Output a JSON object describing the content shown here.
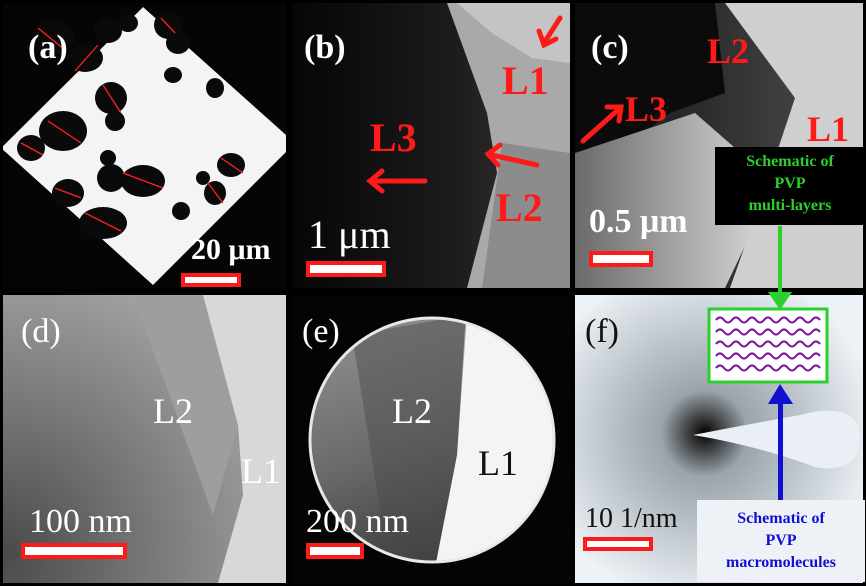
{
  "panels": {
    "a": {
      "tag": "(a)",
      "scale": "20 μm"
    },
    "b": {
      "tag": "(b)",
      "labels": [
        "L1",
        "L2",
        "L3"
      ],
      "scale": "1 μm"
    },
    "c": {
      "tag": "(c)",
      "labels": [
        "L1",
        "L2",
        "L3"
      ],
      "scale": "0.5 μm"
    },
    "d": {
      "tag": "(d)",
      "labels": [
        "L1",
        "L2"
      ],
      "scale": "100 nm"
    },
    "e": {
      "tag": "(e)",
      "labels": [
        "L1",
        "L2"
      ],
      "scale": "200 nm"
    },
    "f": {
      "tag": "(f)",
      "scale": "10 1/nm"
    }
  },
  "callouts": {
    "multilayer": {
      "line1": "Schematic of",
      "line2": "PVP",
      "line3": "multi-layers"
    },
    "macromolecule": {
      "line1": "Schematic of",
      "line2": "PVP",
      "line3": "macromolecules"
    }
  },
  "colors": {
    "label_red": "#ff1a1a",
    "callout_green": "#2bd12b",
    "callout_blue": "#1010d0",
    "chain_purple": "#7a1fa0"
  }
}
